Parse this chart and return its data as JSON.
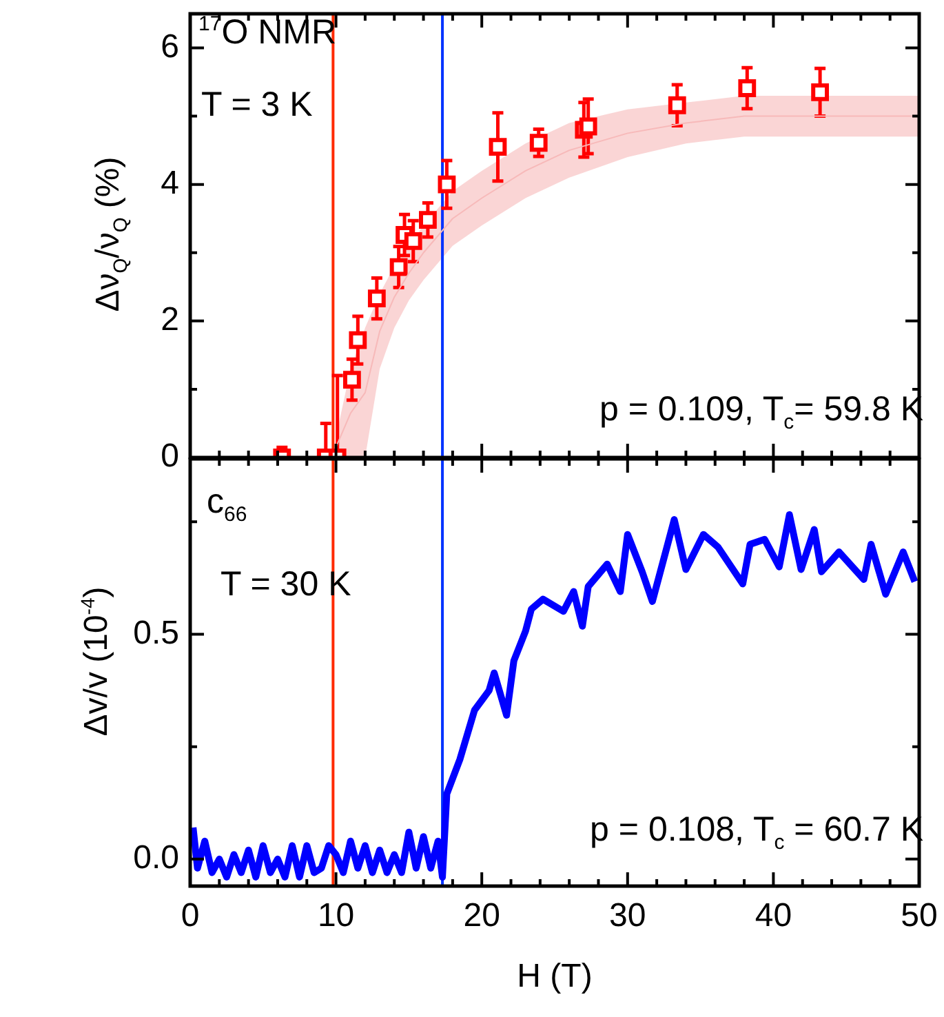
{
  "chart_data": [
    {
      "type": "scatter",
      "xlim": [
        0,
        50
      ],
      "ylim": [
        0,
        6.5
      ],
      "xticks": [
        0,
        {
          "value": 2,
          "label": null
        },
        {
          "value": 4,
          "label": null
        },
        {
          "value": 6,
          "label": null
        },
        {
          "value": 8,
          "label": null
        },
        10,
        {
          "value": 12,
          "label": null
        },
        {
          "value": 14,
          "label": null
        },
        {
          "value": 16,
          "label": null
        },
        {
          "value": 18,
          "label": null
        },
        20,
        {
          "value": 22,
          "label": null
        },
        {
          "value": 24,
          "label": null
        },
        {
          "value": 26,
          "label": null
        },
        {
          "value": 28,
          "label": null
        },
        30,
        {
          "value": 32,
          "label": null
        },
        {
          "value": 34,
          "label": null
        },
        {
          "value": 36,
          "label": null
        },
        {
          "value": 38,
          "label": null
        },
        40,
        {
          "value": 42,
          "label": null
        },
        {
          "value": 44,
          "label": null
        },
        {
          "value": 46,
          "label": null
        },
        {
          "value": 48,
          "label": null
        },
        50
      ],
      "yticks": [
        0,
        {
          "value": 1,
          "label": null
        },
        2,
        {
          "value": 3,
          "label": null
        },
        4,
        {
          "value": 5,
          "label": null
        },
        6
      ],
      "tick_labels": "y",
      "ylabel": "Δν$_{Q}$/ν$_{Q}$ (%)",
      "grid": false,
      "legend": false,
      "marker": "square",
      "annotations": [
        "$^{17}$O NMR",
        "T = 3 K",
        "p = 0.109, T$_{c}$= 59.8 K"
      ],
      "ref_lines": [
        {
          "axis": "x",
          "value": 9.8,
          "color": "#ff2a00"
        },
        {
          "axis": "x",
          "value": 17.3,
          "color": "#0033ff"
        }
      ],
      "series": [
        {
          "type": "line",
          "marker": "none",
          "color": "#f7b9b9",
          "x": [
            10,
            10.5,
            11,
            12,
            13,
            14,
            15,
            16,
            18,
            20,
            23,
            26,
            30,
            34,
            38,
            42,
            46,
            50
          ],
          "values": [
            0.15,
            0.4,
            0.65,
            0.95,
            1.85,
            2.35,
            2.7,
            3.0,
            3.5,
            3.8,
            4.2,
            4.5,
            4.75,
            4.9,
            5.0,
            5.0,
            5.0,
            5.0
          ],
          "lower": [
            0,
            0,
            0,
            0,
            1.3,
            1.9,
            2.3,
            2.6,
            3.1,
            3.4,
            3.8,
            4.1,
            4.4,
            4.6,
            4.7,
            4.7,
            4.7,
            4.7
          ],
          "upper": [
            0.3,
            0.8,
            1.3,
            1.9,
            2.4,
            2.8,
            3.1,
            3.4,
            3.9,
            4.2,
            4.6,
            4.9,
            5.1,
            5.2,
            5.3,
            5.3,
            5.3,
            5.3
          ]
        },
        {
          "color": "#ff0000",
          "x": [
            6.3,
            9.3,
            10.1,
            11.1,
            11.5,
            12.8,
            14.3,
            14.7,
            15.3,
            16.3,
            17.6,
            21.1,
            23.9,
            27.0,
            27.3,
            33.4,
            38.2,
            43.2
          ],
          "values": [
            0,
            0,
            0,
            1.14,
            1.72,
            2.33,
            2.79,
            3.26,
            3.17,
            3.48,
            4.0,
            4.55,
            4.61,
            4.8,
            4.85,
            5.16,
            5.41,
            5.35
          ],
          "errors": [
            [
              0,
              0.15
            ],
            [
              0,
              0.5
            ],
            [
              0,
              1.2
            ],
            0.3,
            0.35,
            0.3,
            0.3,
            0.3,
            0.3,
            0.25,
            0.35,
            0.5,
            0.2,
            0.4,
            0.4,
            0.3,
            0.3,
            0.35
          ]
        }
      ]
    },
    {
      "type": "line",
      "xlim": [
        0,
        50
      ],
      "ylim": [
        -0.06,
        0.89
      ],
      "xticks": [
        0,
        {
          "value": 2,
          "label": null
        },
        {
          "value": 4,
          "label": null
        },
        {
          "value": 6,
          "label": null
        },
        {
          "value": 8,
          "label": null
        },
        10,
        {
          "value": 12,
          "label": null
        },
        {
          "value": 14,
          "label": null
        },
        {
          "value": 16,
          "label": null
        },
        {
          "value": 18,
          "label": null
        },
        20,
        {
          "value": 22,
          "label": null
        },
        {
          "value": 24,
          "label": null
        },
        {
          "value": 26,
          "label": null
        },
        {
          "value": 28,
          "label": null
        },
        30,
        {
          "value": 32,
          "label": null
        },
        {
          "value": 34,
          "label": null
        },
        {
          "value": 36,
          "label": null
        },
        {
          "value": 38,
          "label": null
        },
        40,
        {
          "value": 42,
          "label": null
        },
        {
          "value": 44,
          "label": null
        },
        {
          "value": 46,
          "label": null
        },
        {
          "value": 48,
          "label": null
        },
        50
      ],
      "yticks": [
        {
          "value": 0,
          "label": "0.0"
        },
        {
          "value": 0.25,
          "label": null
        },
        {
          "value": 0.5,
          "label": "0.5"
        },
        {
          "value": 0.75,
          "label": null
        }
      ],
      "xlabel": "H (T)",
      "ylabel": "Δv/v (10$^{-4}$)",
      "grid": false,
      "legend": false,
      "marker": "none",
      "annotations": [
        "c$_{66}$",
        "T = 30 K",
        "p = 0.108, T$_{c}$ = 60.7 K"
      ],
      "ref_lines": [
        {
          "axis": "x",
          "value": 9.8,
          "color": "#ff2a00"
        },
        {
          "axis": "x",
          "value": 17.3,
          "color": "#0033ff"
        }
      ],
      "series": [
        {
          "color": "#0000ff",
          "x": [
            0.2,
            0.5,
            1,
            1.5,
            2,
            2.5,
            3,
            3.5,
            4,
            4.5,
            5,
            5.5,
            6,
            6.5,
            7,
            7.5,
            8,
            8.5,
            9,
            9.5,
            10,
            10.5,
            11,
            11.5,
            12,
            12.5,
            13,
            13.5,
            14,
            14.5,
            15,
            15.5,
            16,
            16.5,
            17,
            17.3,
            17.6,
            18.5,
            19.5,
            20.5,
            20.85,
            21.7,
            22.2,
            23.0,
            23.4,
            24.2,
            25.6,
            26.3,
            26.9,
            27.3,
            28.6,
            29.5,
            30.0,
            31.0,
            31.7,
            32.7,
            33.2,
            34.0,
            35.2,
            36.2,
            37.9,
            38.4,
            39.4,
            40.4,
            41.1,
            41.9,
            42.8,
            43.3,
            44.5,
            46.2,
            46.7,
            47.7,
            48.9,
            49.7
          ],
          "values": [
            0.07,
            -0.02,
            0.04,
            -0.03,
            0.0,
            -0.04,
            0.01,
            -0.03,
            0.02,
            -0.04,
            0.03,
            -0.03,
            0.0,
            -0.04,
            0.03,
            -0.04,
            0.03,
            -0.03,
            -0.02,
            0.03,
            0.01,
            -0.03,
            0.04,
            -0.02,
            0.03,
            -0.03,
            0.02,
            -0.03,
            0.01,
            -0.03,
            0.06,
            -0.02,
            0.05,
            -0.02,
            0.04,
            -0.04,
            0.145,
            0.222,
            0.331,
            0.375,
            0.414,
            0.32,
            0.441,
            0.507,
            0.556,
            0.578,
            0.551,
            0.595,
            0.518,
            0.606,
            0.656,
            0.595,
            0.722,
            0.639,
            0.573,
            0.694,
            0.755,
            0.644,
            0.722,
            0.694,
            0.612,
            0.7,
            0.711,
            0.65,
            0.766,
            0.644,
            0.733,
            0.639,
            0.683,
            0.622,
            0.7,
            0.589,
            0.683,
            0.617
          ]
        }
      ]
    }
  ]
}
